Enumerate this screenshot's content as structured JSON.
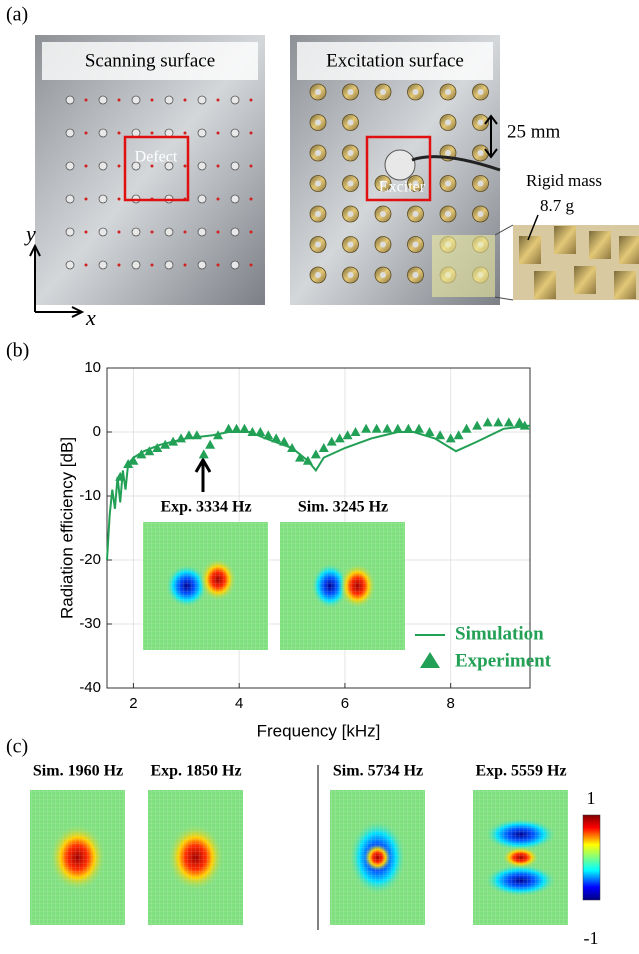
{
  "panels": {
    "a": "(a)",
    "b": "(b)",
    "c": "(c)"
  },
  "photos": {
    "scanning": "Scanning surface",
    "defect": "Defect",
    "excitation": "Excitation surface",
    "exciter": "Exciter",
    "spacing": "25 mm",
    "mass": "Rigid mass",
    "mass_value": "8.7 g",
    "axis_y": "y",
    "axis_x": "x"
  },
  "chart_data": {
    "type": "line",
    "xlabel": "Frequency [kHz]",
    "ylabel": "Radiation efficiency [dB]",
    "xlim": [
      1.5,
      9.5
    ],
    "ylim": [
      -40,
      10
    ],
    "xticks": [
      2,
      4,
      6,
      8
    ],
    "yticks": [
      -40,
      -30,
      -20,
      -10,
      0,
      10
    ],
    "grid": true,
    "annotations": [
      "Exp. 3334 Hz",
      "Sim. 3245 Hz"
    ],
    "series": [
      {
        "name": "Simulation",
        "color": "#22a055",
        "mode": "line",
        "x": [
          1.5,
          1.55,
          1.6,
          1.65,
          1.7,
          1.75,
          1.8,
          1.85,
          1.9,
          2.0,
          2.2,
          2.5,
          3.0,
          3.5,
          3.8,
          4.2,
          4.5,
          5.0,
          5.3,
          5.45,
          5.6,
          6.0,
          6.5,
          7.0,
          7.3,
          7.7,
          8.1,
          8.5,
          9.0,
          9.5
        ],
        "values": [
          -20,
          -13,
          -9,
          -12,
          -7,
          -11,
          -6,
          -9,
          -5,
          -4,
          -3,
          -2,
          -1,
          -0.5,
          0,
          0,
          -1,
          -2.5,
          -4.5,
          -6,
          -4,
          -2.5,
          -1,
          0,
          0,
          -1,
          -3,
          -1.5,
          0.5,
          1
        ]
      },
      {
        "name": "Experiment",
        "color": "#22a055",
        "mode": "markers",
        "x": [
          1.75,
          1.9,
          2.0,
          2.15,
          2.3,
          2.45,
          2.6,
          2.75,
          2.9,
          3.05,
          3.2,
          3.33,
          3.45,
          3.6,
          3.8,
          3.95,
          4.1,
          4.25,
          4.4,
          4.55,
          4.7,
          4.85,
          5.0,
          5.15,
          5.3,
          5.45,
          5.6,
          5.75,
          5.9,
          6.05,
          6.2,
          6.4,
          6.6,
          6.8,
          7.0,
          7.2,
          7.4,
          7.6,
          7.8,
          8.0,
          8.15,
          8.3,
          8.5,
          8.7,
          8.9,
          9.1,
          9.3,
          9.4
        ],
        "values": [
          -7,
          -5,
          -4.5,
          -3.5,
          -3,
          -2.5,
          -2,
          -1.5,
          -1,
          -0.5,
          -0.5,
          -3.5,
          -2,
          -0.5,
          0.5,
          0.5,
          0.5,
          0,
          0,
          -0.5,
          -1,
          -1.5,
          -2.5,
          -4,
          -4.5,
          -3.5,
          -2.5,
          -1.5,
          -1,
          -0.5,
          0,
          0.5,
          0.5,
          0.5,
          0.5,
          0.5,
          0.5,
          0,
          -0.5,
          -1,
          -0.5,
          0.5,
          1,
          1.5,
          1.5,
          1.5,
          1.5,
          1
        ]
      }
    ]
  },
  "modes": [
    "Sim. 1960 Hz",
    "Exp. 1850 Hz",
    "Sim. 5734 Hz",
    "Exp. 5559 Hz"
  ],
  "colorbar": {
    "ticks": [
      1,
      -1
    ]
  }
}
